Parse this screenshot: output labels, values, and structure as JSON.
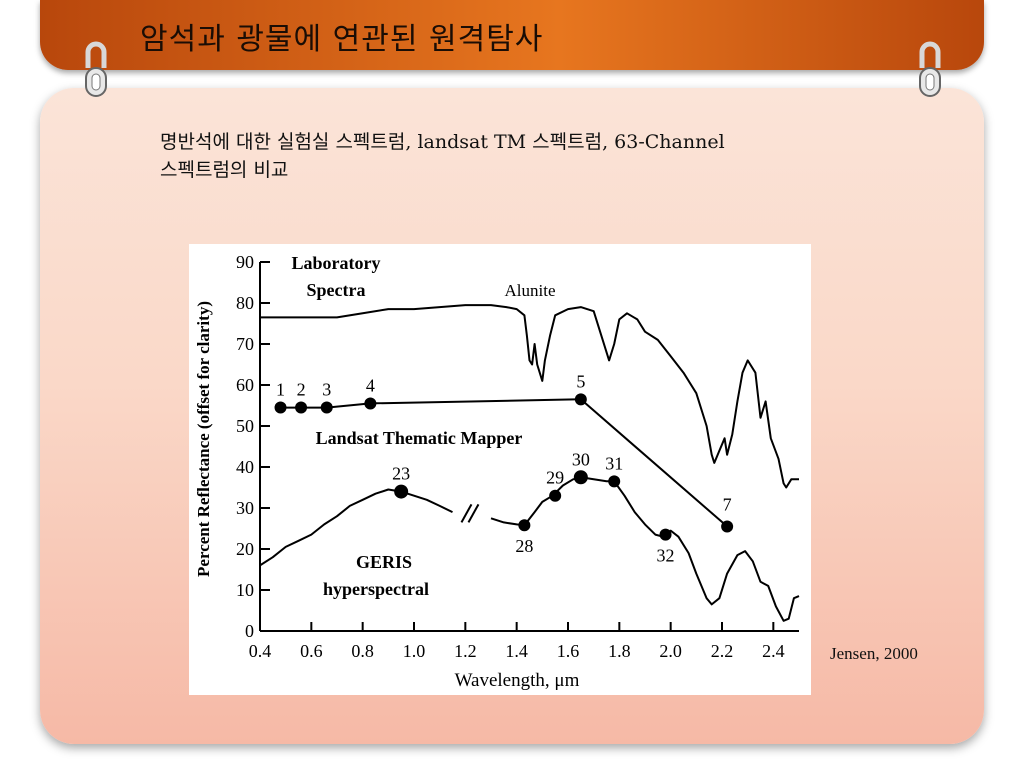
{
  "slide": {
    "title": "암석과 광물에 연관된 원격탐사",
    "subtitle_line1": "명반석에 대한 실험실 스펙트럼, landsat TM 스펙트럼, 63-Channel",
    "subtitle_line2": "스펙트럼의 비교",
    "credit": "Jensen, 2000"
  },
  "colors": {
    "title_bar": "#e7761f",
    "panel": "#fad8c8",
    "ink": "#000000"
  },
  "chart_data": {
    "type": "line",
    "xlabel": "Wavelength,  μm",
    "ylabel": "Percent Reflectance (offset for clarity)",
    "xlim": [
      0.4,
      2.5
    ],
    "ylim": [
      0,
      90
    ],
    "x_ticks": [
      "0.4",
      "0.6",
      "0.8",
      "1.0",
      "1.2",
      "1.4",
      "1.6",
      "1.8",
      "2.0",
      "2.2",
      "2.4"
    ],
    "y_ticks": [
      "0",
      "10",
      "20",
      "30",
      "40",
      "50",
      "60",
      "70",
      "80",
      "90"
    ],
    "grid": false,
    "labels": {
      "lab_line1": "Laboratory",
      "lab_line2": "Spectra",
      "alunite": "Alunite",
      "tm": "Landsat Thematic Mapper",
      "geris_line1": "GERIS",
      "geris_line2": "hyperspectral"
    },
    "series": [
      {
        "key": "laboratory",
        "points": [
          [
            0.4,
            76.5
          ],
          [
            0.55,
            76.5
          ],
          [
            0.7,
            76.5
          ],
          [
            0.8,
            77.5
          ],
          [
            0.9,
            78.5
          ],
          [
            1.0,
            78.5
          ],
          [
            1.1,
            79.0
          ],
          [
            1.2,
            79.5
          ],
          [
            1.3,
            79.5
          ],
          [
            1.36,
            79.0
          ],
          [
            1.4,
            78.5
          ],
          [
            1.43,
            77.0
          ],
          [
            1.44,
            72.0
          ],
          [
            1.45,
            66.0
          ],
          [
            1.46,
            65.0
          ],
          [
            1.47,
            70.0
          ],
          [
            1.48,
            65.0
          ],
          [
            1.5,
            61.0
          ],
          [
            1.51,
            66.0
          ],
          [
            1.53,
            72.0
          ],
          [
            1.55,
            77.0
          ],
          [
            1.6,
            78.5
          ],
          [
            1.65,
            79.0
          ],
          [
            1.7,
            78.0
          ],
          [
            1.73,
            72.0
          ],
          [
            1.76,
            66.0
          ],
          [
            1.78,
            70.0
          ],
          [
            1.8,
            76.0
          ],
          [
            1.83,
            77.5
          ],
          [
            1.87,
            76.0
          ],
          [
            1.9,
            73.0
          ],
          [
            1.95,
            71.0
          ],
          [
            2.0,
            67.0
          ],
          [
            2.05,
            63.0
          ],
          [
            2.1,
            58.0
          ],
          [
            2.14,
            50.0
          ],
          [
            2.16,
            43.0
          ],
          [
            2.17,
            41.0
          ],
          [
            2.19,
            44.0
          ],
          [
            2.21,
            47.0
          ],
          [
            2.22,
            43.0
          ],
          [
            2.24,
            48.0
          ],
          [
            2.26,
            56.0
          ],
          [
            2.28,
            63.0
          ],
          [
            2.3,
            66.0
          ],
          [
            2.33,
            63.0
          ],
          [
            2.35,
            52.0
          ],
          [
            2.37,
            56.0
          ],
          [
            2.39,
            47.0
          ],
          [
            2.42,
            42.0
          ],
          [
            2.44,
            36.0
          ],
          [
            2.45,
            35.0
          ],
          [
            2.47,
            37.0
          ],
          [
            2.5,
            37.0
          ]
        ]
      },
      {
        "key": "landsat_tm",
        "bands": [
          "1",
          "2",
          "3",
          "4",
          "5",
          "7"
        ],
        "points": [
          [
            0.48,
            54.5
          ],
          [
            0.56,
            54.5
          ],
          [
            0.66,
            54.5
          ],
          [
            0.83,
            55.5
          ],
          [
            1.65,
            56.5
          ],
          [
            2.22,
            25.5
          ]
        ]
      },
      {
        "key": "geris",
        "channels": [
          "23",
          "28",
          "29",
          "30",
          "31",
          "32"
        ],
        "points": [
          [
            0.4,
            16.0
          ],
          [
            0.45,
            18.0
          ],
          [
            0.5,
            20.5
          ],
          [
            0.55,
            22.0
          ],
          [
            0.6,
            23.5
          ],
          [
            0.65,
            26.0
          ],
          [
            0.7,
            28.0
          ],
          [
            0.75,
            30.5
          ],
          [
            0.8,
            32.0
          ],
          [
            0.85,
            33.5
          ],
          [
            0.9,
            34.5
          ],
          [
            0.95,
            34.0
          ],
          [
            1.0,
            33.0
          ],
          [
            1.05,
            32.0
          ],
          [
            1.1,
            30.5
          ],
          [
            1.15,
            29.0
          ],
          [
            1.2,
            28.5
          ],
          [
            1.25,
            28.0
          ],
          [
            1.3,
            27.5
          ],
          [
            1.35,
            26.5
          ],
          [
            1.4,
            26.0
          ],
          [
            1.43,
            25.8
          ],
          [
            1.47,
            29.0
          ],
          [
            1.5,
            31.5
          ],
          [
            1.54,
            33.0
          ],
          [
            1.58,
            35.5
          ],
          [
            1.62,
            37.0
          ],
          [
            1.65,
            37.5
          ],
          [
            1.7,
            37.0
          ],
          [
            1.75,
            36.5
          ],
          [
            1.78,
            36.5
          ],
          [
            1.82,
            33.0
          ],
          [
            1.86,
            29.0
          ],
          [
            1.9,
            26.0
          ],
          [
            1.94,
            23.5
          ],
          [
            1.97,
            23.0
          ],
          [
            2.0,
            24.5
          ],
          [
            2.03,
            23.0
          ],
          [
            2.07,
            19.0
          ],
          [
            2.1,
            14.0
          ],
          [
            2.14,
            8.0
          ],
          [
            2.16,
            6.5
          ],
          [
            2.19,
            8.0
          ],
          [
            2.22,
            14.0
          ],
          [
            2.26,
            18.5
          ],
          [
            2.29,
            19.5
          ],
          [
            2.32,
            17.0
          ],
          [
            2.35,
            12.0
          ],
          [
            2.38,
            11.0
          ],
          [
            2.41,
            6.0
          ],
          [
            2.44,
            2.5
          ],
          [
            2.46,
            3.0
          ],
          [
            2.48,
            8.0
          ],
          [
            2.5,
            8.5
          ]
        ],
        "markers": [
          [
            0.95,
            34.0
          ],
          [
            1.43,
            25.8
          ],
          [
            1.55,
            33.0
          ],
          [
            1.65,
            37.5
          ],
          [
            1.78,
            36.5
          ],
          [
            1.98,
            23.5
          ]
        ]
      }
    ]
  }
}
